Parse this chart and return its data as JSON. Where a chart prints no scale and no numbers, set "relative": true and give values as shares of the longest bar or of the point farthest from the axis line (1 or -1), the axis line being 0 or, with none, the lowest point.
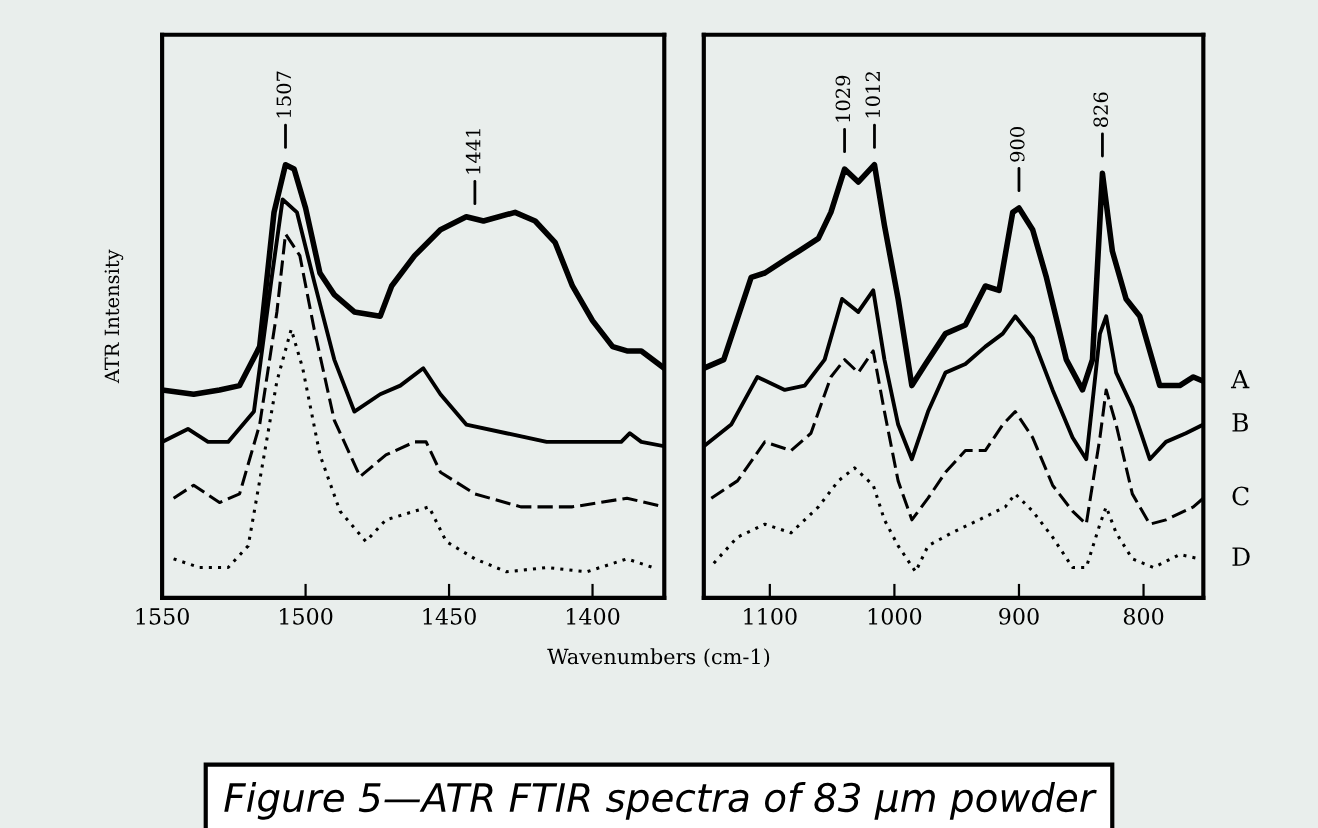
{
  "chart_data": [
    {
      "type": "line",
      "relative": true,
      "ylabel": "ATR Intensity",
      "xlabel": "Wavenumbers (cm-1)",
      "xlim": [
        1550,
        1375
      ],
      "xticks": [
        1550,
        1500,
        1450,
        1400
      ],
      "tick_labels": "x",
      "grid": false,
      "marker": "none",
      "annotations": [
        {
          "text": "1507",
          "x": 1507,
          "y": 1.0
        },
        {
          "text": "1441",
          "x": 1441,
          "y": 0.87
        }
      ],
      "series": [
        {
          "color": "#000000",
          "line_style": "solid",
          "x": [
            1550,
            1539,
            1530,
            1523,
            1516,
            1511,
            1507,
            1504,
            1500,
            1495,
            1490,
            1483,
            1474,
            1470,
            1462,
            1453,
            1444,
            1438,
            1427,
            1420,
            1413,
            1407,
            1400,
            1393,
            1388,
            1383,
            1375
          ],
          "values": [
            0.48,
            0.47,
            0.48,
            0.49,
            0.58,
            0.89,
            1.0,
            0.99,
            0.9,
            0.75,
            0.7,
            0.66,
            0.65,
            0.72,
            0.79,
            0.85,
            0.88,
            0.87,
            0.89,
            0.87,
            0.82,
            0.72,
            0.64,
            0.58,
            0.57,
            0.57,
            0.53
          ]
        },
        {
          "color": "#000000",
          "line_style": "solid",
          "x": [
            1550,
            1541,
            1534,
            1527,
            1518,
            1512,
            1508,
            1503,
            1497,
            1490,
            1483,
            1474,
            1467,
            1459,
            1453,
            1444,
            1430,
            1416,
            1402,
            1390,
            1387,
            1383,
            1375
          ],
          "values": [
            0.36,
            0.39,
            0.36,
            0.36,
            0.43,
            0.73,
            0.92,
            0.89,
            0.73,
            0.55,
            0.43,
            0.47,
            0.49,
            0.53,
            0.47,
            0.4,
            0.38,
            0.36,
            0.36,
            0.36,
            0.38,
            0.36,
            0.35
          ]
        },
        {
          "color": "#000000",
          "line_style": "dashed",
          "x": [
            1546,
            1539,
            1530,
            1523,
            1516,
            1510,
            1507,
            1502,
            1497,
            1490,
            1481,
            1472,
            1462,
            1458,
            1453,
            1441,
            1425,
            1407,
            1388,
            1375
          ],
          "values": [
            0.23,
            0.26,
            0.22,
            0.24,
            0.4,
            0.66,
            0.84,
            0.79,
            0.62,
            0.41,
            0.28,
            0.33,
            0.36,
            0.36,
            0.29,
            0.24,
            0.21,
            0.21,
            0.23,
            0.21
          ]
        },
        {
          "color": "#000000",
          "line_style": "dotted",
          "x": [
            1546,
            1537,
            1527,
            1520,
            1516,
            1510,
            1505,
            1501,
            1495,
            1488,
            1479,
            1472,
            1462,
            1457,
            1451,
            1441,
            1430,
            1416,
            1402,
            1388,
            1379
          ],
          "values": [
            0.09,
            0.07,
            0.07,
            0.12,
            0.27,
            0.5,
            0.62,
            0.53,
            0.33,
            0.2,
            0.13,
            0.18,
            0.2,
            0.21,
            0.13,
            0.09,
            0.06,
            0.07,
            0.06,
            0.09,
            0.07
          ]
        }
      ]
    },
    {
      "type": "line",
      "relative": true,
      "xlim": [
        1153,
        752
      ],
      "xticks": [
        1100,
        1000,
        900,
        800
      ],
      "tick_labels": "x",
      "grid": false,
      "legend": "right",
      "marker": "none",
      "annotations": [
        {
          "text": "1029",
          "x": 1040,
          "y": 0.99
        },
        {
          "text": "1012",
          "x": 1016,
          "y": 1.0
        },
        {
          "text": "900",
          "x": 900,
          "y": 0.9
        },
        {
          "text": "826",
          "x": 833,
          "y": 0.98
        },
        {
          "text": "Figure 5—ATR FTIR spectra of 83 µm powder"
        }
      ],
      "series": [
        {
          "name": "A",
          "color": "#000000",
          "line_style": "solid",
          "x": [
            1153,
            1137,
            1115,
            1104,
            1088,
            1077,
            1061,
            1051,
            1040,
            1029,
            1016,
            1008,
            997,
            986,
            975,
            959,
            943,
            927,
            916,
            905,
            900,
            889,
            878,
            862,
            849,
            841,
            833,
            825,
            814,
            803,
            787,
            771,
            760,
            752
          ],
          "values": [
            0.53,
            0.55,
            0.74,
            0.75,
            0.78,
            0.8,
            0.83,
            0.89,
            0.99,
            0.96,
            1.0,
            0.86,
            0.69,
            0.49,
            0.54,
            0.61,
            0.63,
            0.72,
            0.71,
            0.89,
            0.9,
            0.85,
            0.74,
            0.55,
            0.48,
            0.55,
            0.98,
            0.8,
            0.69,
            0.65,
            0.49,
            0.49,
            0.51,
            0.5
          ]
        },
        {
          "name": "B",
          "color": "#000000",
          "line_style": "solid",
          "x": [
            1153,
            1131,
            1110,
            1088,
            1072,
            1056,
            1042,
            1029,
            1017,
            1008,
            997,
            986,
            973,
            959,
            943,
            927,
            913,
            903,
            889,
            873,
            857,
            846,
            835,
            830,
            822,
            809,
            795,
            782,
            766,
            752
          ],
          "values": [
            0.35,
            0.4,
            0.51,
            0.48,
            0.49,
            0.55,
            0.69,
            0.66,
            0.71,
            0.55,
            0.4,
            0.32,
            0.43,
            0.52,
            0.54,
            0.58,
            0.61,
            0.65,
            0.6,
            0.48,
            0.37,
            0.32,
            0.61,
            0.65,
            0.52,
            0.44,
            0.32,
            0.36,
            0.38,
            0.4
          ]
        },
        {
          "name": "C",
          "color": "#000000",
          "line_style": "dashed",
          "x": [
            1147,
            1126,
            1104,
            1083,
            1067,
            1051,
            1040,
            1029,
            1017,
            1008,
            997,
            986,
            973,
            959,
            943,
            927,
            913,
            903,
            889,
            873,
            857,
            846,
            835,
            830,
            822,
            809,
            795,
            782,
            760,
            752
          ],
          "values": [
            0.23,
            0.27,
            0.36,
            0.34,
            0.38,
            0.51,
            0.55,
            0.52,
            0.57,
            0.43,
            0.27,
            0.18,
            0.23,
            0.29,
            0.34,
            0.34,
            0.4,
            0.43,
            0.37,
            0.26,
            0.2,
            0.17,
            0.37,
            0.48,
            0.4,
            0.24,
            0.17,
            0.18,
            0.21,
            0.23
          ]
        },
        {
          "name": "D",
          "color": "#000000",
          "line_style": "dotted",
          "x": [
            1145,
            1126,
            1104,
            1083,
            1061,
            1045,
            1032,
            1017,
            1008,
            997,
            983,
            973,
            954,
            932,
            911,
            903,
            889,
            873,
            857,
            846,
            835,
            830,
            822,
            809,
            792,
            771,
            755
          ],
          "values": [
            0.08,
            0.14,
            0.17,
            0.15,
            0.21,
            0.27,
            0.3,
            0.26,
            0.18,
            0.12,
            0.06,
            0.12,
            0.15,
            0.18,
            0.21,
            0.24,
            0.2,
            0.14,
            0.07,
            0.07,
            0.17,
            0.21,
            0.15,
            0.09,
            0.07,
            0.1,
            0.09
          ]
        }
      ]
    }
  ]
}
